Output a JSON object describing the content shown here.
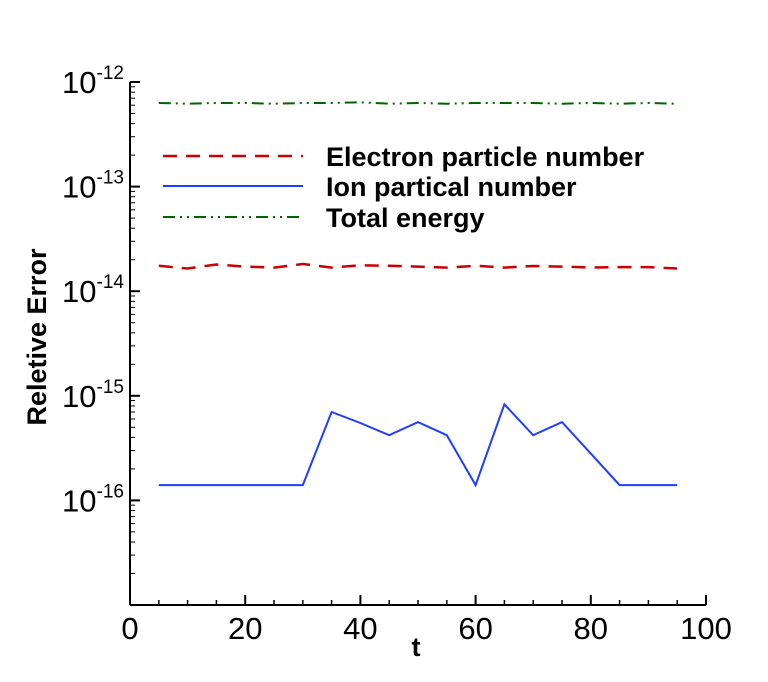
{
  "chart_data": {
    "type": "line",
    "title": "",
    "xlabel": "t",
    "ylabel": "Reletive Error",
    "xlim": [
      0,
      100
    ],
    "ylim": [
      1e-17,
      1e-12
    ],
    "yscale": "log",
    "x_ticks": [
      0,
      20,
      40,
      60,
      80,
      100
    ],
    "y_ticks": [
      {
        "base": "10",
        "exp": "-12",
        "value": 1e-12
      },
      {
        "base": "10",
        "exp": "-13",
        "value": 1e-13
      },
      {
        "base": "10",
        "exp": "-14",
        "value": 1e-14
      },
      {
        "base": "10",
        "exp": "-15",
        "value": 1e-15
      },
      {
        "base": "10",
        "exp": "-16",
        "value": 1e-16
      }
    ],
    "grid": false,
    "legend": "top-right",
    "series": [
      {
        "name": "Electron particle number",
        "color": "#cc0000",
        "style": "dashed",
        "x": [
          5,
          10,
          15,
          20,
          25,
          30,
          35,
          40,
          45,
          50,
          55,
          60,
          65,
          70,
          75,
          80,
          85,
          90,
          95
        ],
        "y": [
          1.75e-14,
          1.65e-14,
          1.8e-14,
          1.72e-14,
          1.68e-14,
          1.82e-14,
          1.68e-14,
          1.77e-14,
          1.75e-14,
          1.72e-14,
          1.68e-14,
          1.75e-14,
          1.68e-14,
          1.74e-14,
          1.72e-14,
          1.68e-14,
          1.7e-14,
          1.7e-14,
          1.65e-14
        ]
      },
      {
        "name": "Ion partical number",
        "color": "#1f3fff",
        "style": "solid",
        "x": [
          5,
          10,
          15,
          20,
          25,
          30,
          35,
          40,
          45,
          50,
          55,
          60,
          65,
          70,
          75,
          80,
          85,
          90,
          95
        ],
        "y": [
          1.4e-16,
          1.4e-16,
          1.4e-16,
          1.4e-16,
          1.4e-16,
          1.4e-16,
          7e-16,
          5.5e-16,
          4.2e-16,
          5.6e-16,
          4.2e-16,
          1.4e-16,
          8.3e-16,
          4.2e-16,
          5.6e-16,
          2.8e-16,
          1.4e-16,
          1.4e-16,
          1.4e-16
        ]
      },
      {
        "name": "Total energy",
        "color": "#006400",
        "style": "dashdotdot",
        "x": [
          5,
          10,
          15,
          20,
          25,
          30,
          35,
          40,
          45,
          50,
          55,
          60,
          65,
          70,
          75,
          80,
          85,
          90,
          95
        ],
        "y": [
          6.3e-13,
          6.2e-13,
          6.3e-13,
          6.3e-13,
          6.2e-13,
          6.3e-13,
          6.3e-13,
          6.4e-13,
          6.2e-13,
          6.3e-13,
          6.2e-13,
          6.3e-13,
          6.3e-13,
          6.3e-13,
          6.2e-13,
          6.3e-13,
          6.2e-13,
          6.3e-13,
          6.2e-13
        ]
      }
    ]
  }
}
